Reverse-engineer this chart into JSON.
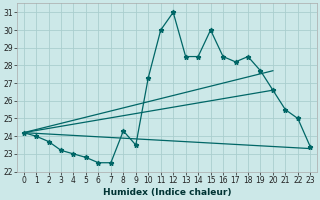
{
  "xlabel": "Humidex (Indice chaleur)",
  "bg_color": "#cce8e8",
  "grid_color": "#aacece",
  "line_color": "#006666",
  "x_values": [
    0,
    1,
    2,
    3,
    4,
    5,
    6,
    7,
    8,
    9,
    10,
    11,
    12,
    13,
    14,
    15,
    16,
    17,
    18,
    19,
    20,
    21,
    22,
    23
  ],
  "main_y": [
    24.2,
    24.0,
    23.7,
    23.2,
    23.0,
    22.8,
    22.5,
    22.5,
    24.3,
    23.5,
    27.3,
    30.0,
    31.0,
    28.5,
    28.5,
    30.0,
    28.5,
    28.2,
    28.5,
    27.7,
    26.6,
    25.5,
    25.0,
    23.4
  ],
  "trend1_x": [
    0,
    23
  ],
  "trend1_y": [
    24.2,
    23.3
  ],
  "trend2_x": [
    0,
    20
  ],
  "trend2_y": [
    24.2,
    26.6
  ],
  "trend3_x": [
    0,
    20
  ],
  "trend3_y": [
    24.2,
    27.7
  ],
  "ylim": [
    22,
    31.5
  ],
  "xlim": [
    -0.5,
    23.5
  ],
  "yticks": [
    22,
    23,
    24,
    25,
    26,
    27,
    28,
    29,
    30,
    31
  ],
  "xticks": [
    0,
    1,
    2,
    3,
    4,
    5,
    6,
    7,
    8,
    9,
    10,
    11,
    12,
    13,
    14,
    15,
    16,
    17,
    18,
    19,
    20,
    21,
    22,
    23
  ],
  "xlabel_fontsize": 6.5,
  "tick_fontsize": 5.5
}
